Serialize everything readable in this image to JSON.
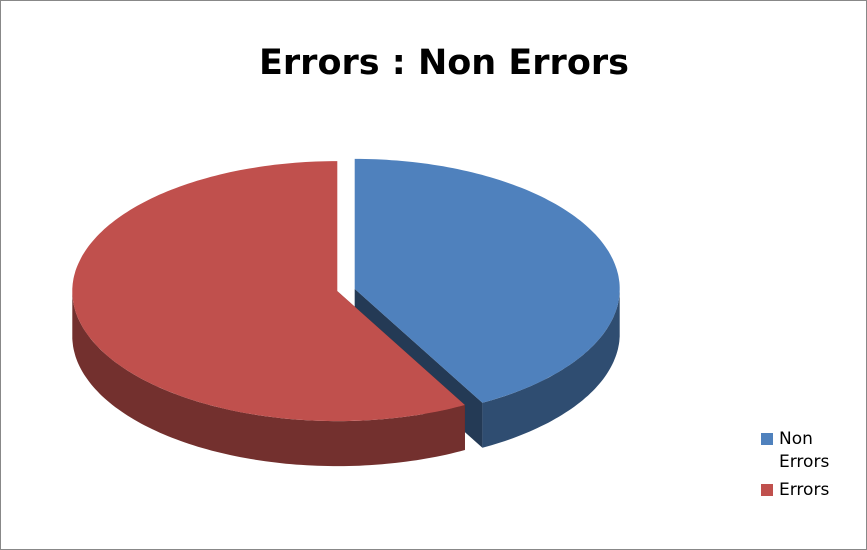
{
  "chart_data": {
    "type": "pie3d",
    "title": "Errors : Non Errors",
    "categories": [
      "Non Errors",
      "Errors"
    ],
    "values": [
      42,
      58
    ],
    "colors": [
      "#4f81bd",
      "#c0504d"
    ],
    "legend": "right"
  }
}
